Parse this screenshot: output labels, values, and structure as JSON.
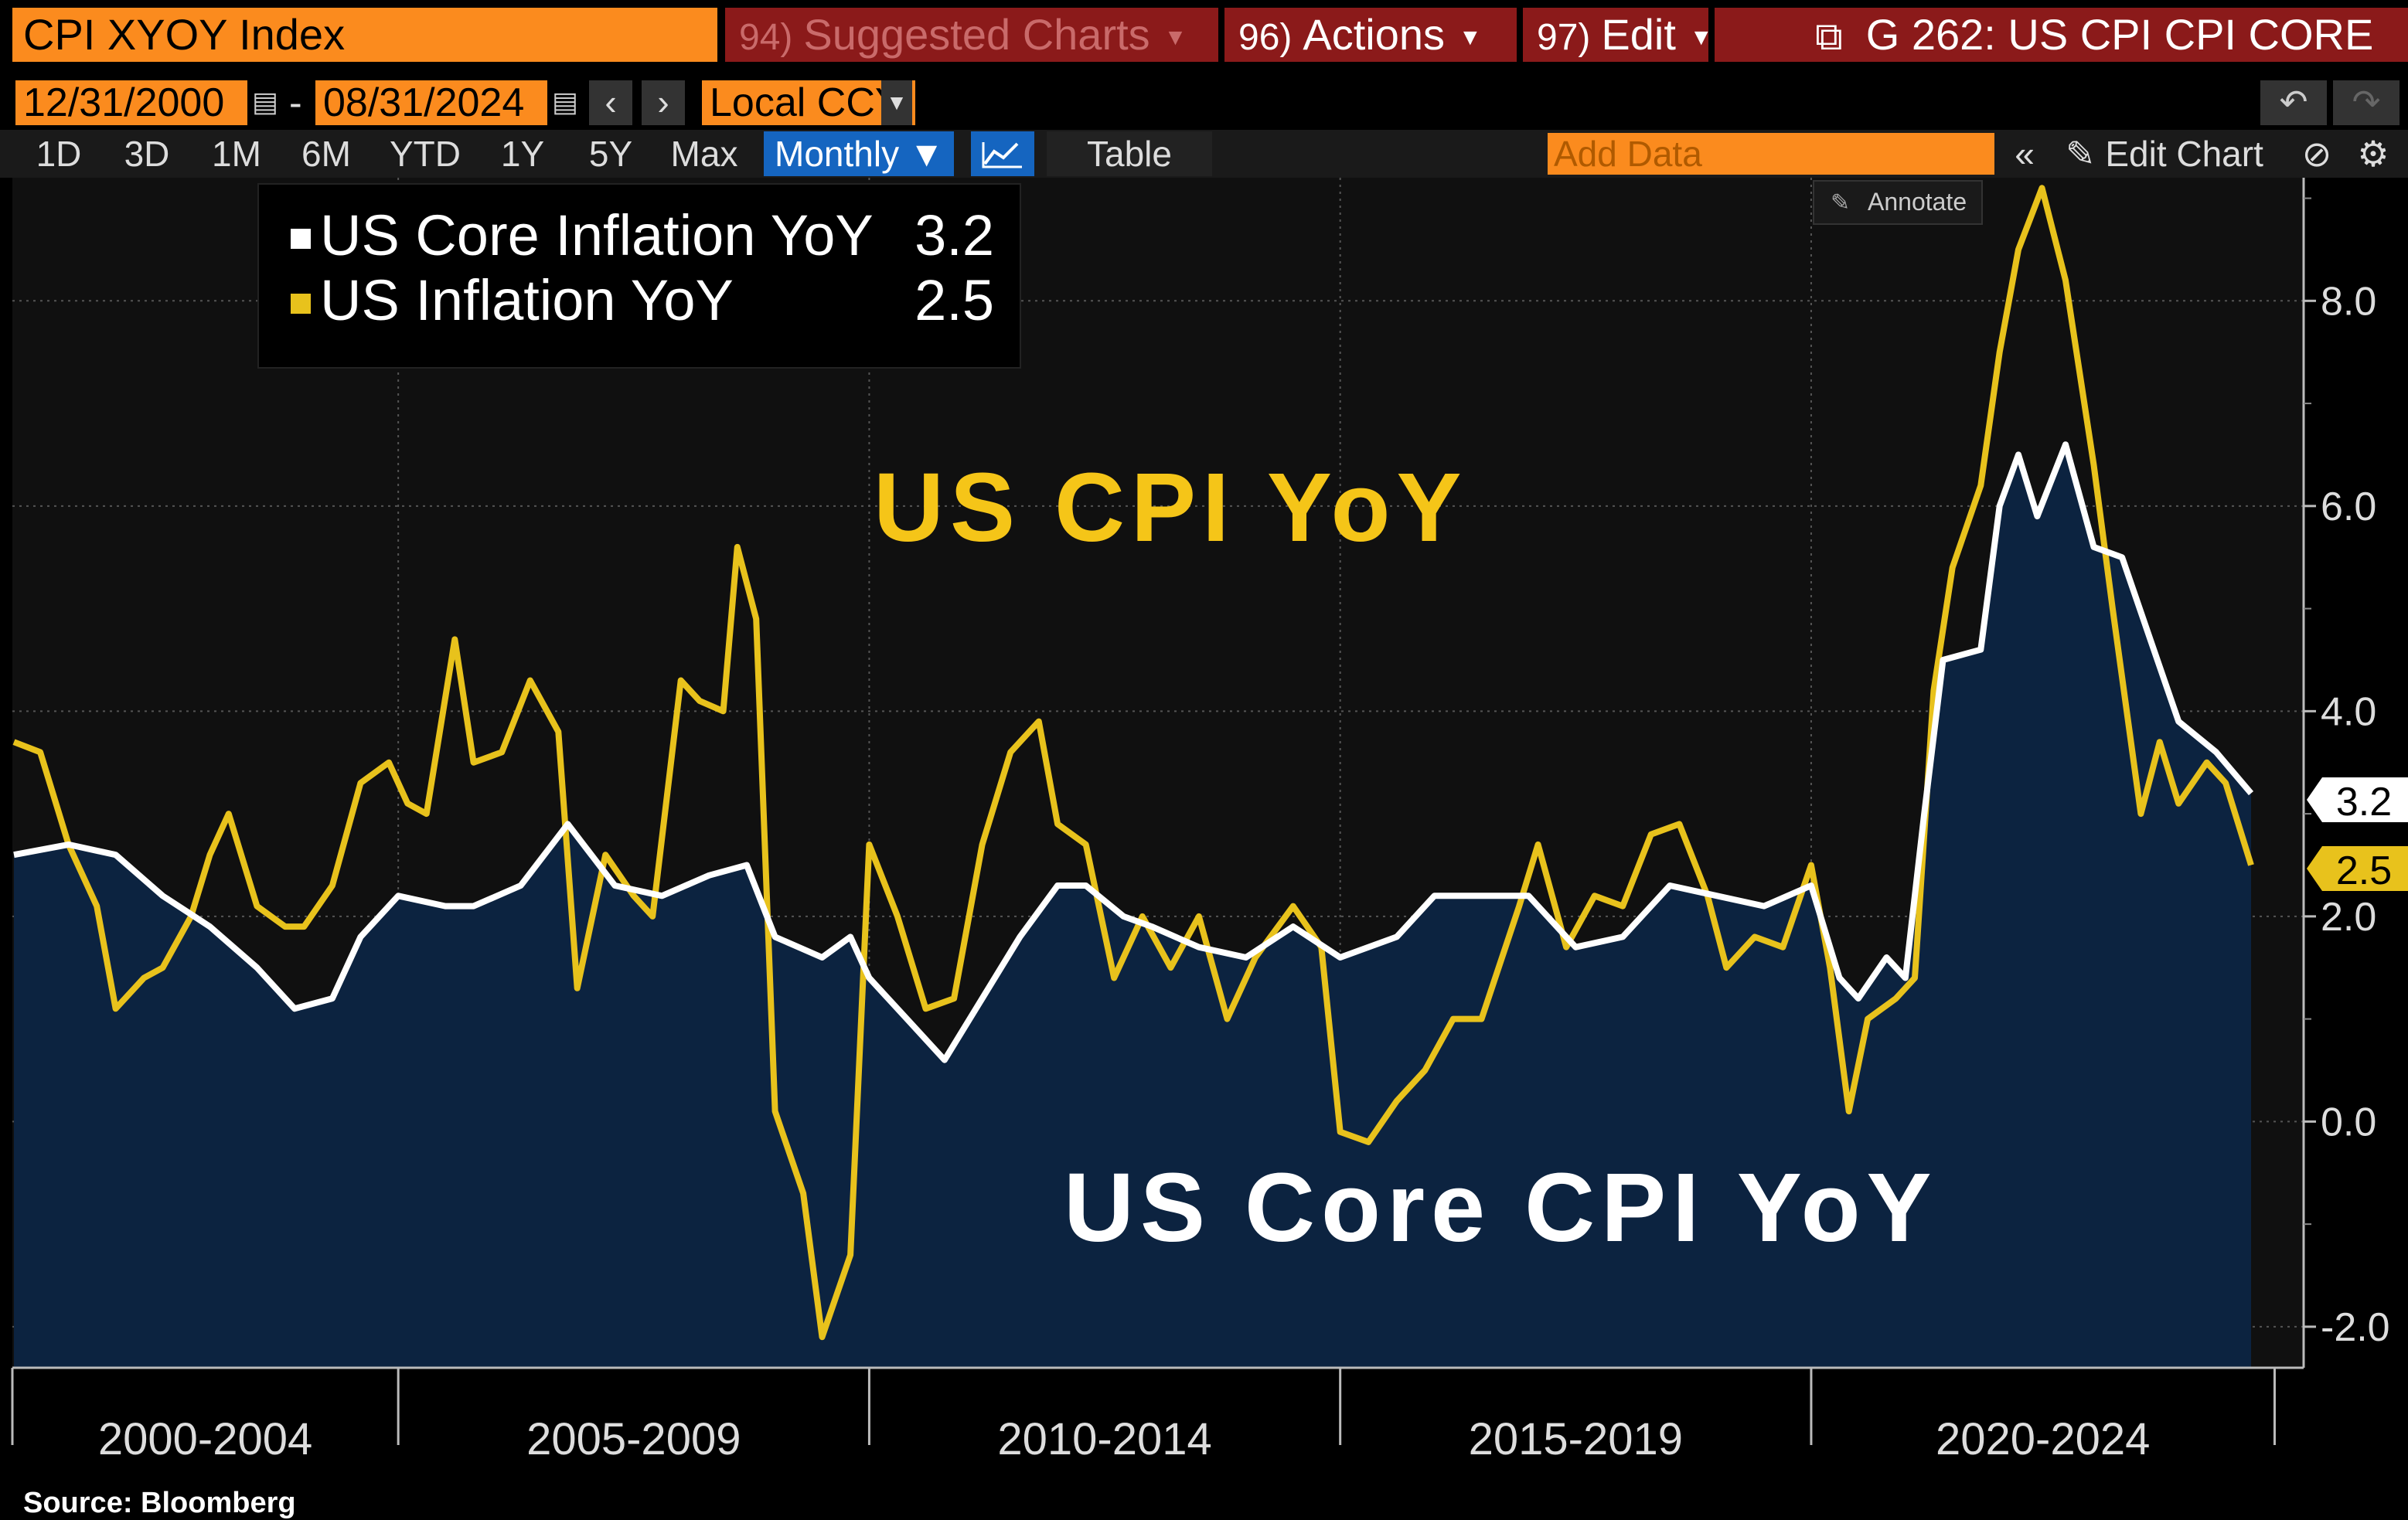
{
  "toolbar": {
    "ticker": "CPI XYOY Index",
    "suggested_num": "94)",
    "suggested_label": "Suggested Charts",
    "actions_num": "96)",
    "actions_label": "Actions",
    "edit_num": "97)",
    "edit_label": "Edit",
    "chart_title": "G 262: US CPI CPI CORE",
    "start_date": "12/31/2000",
    "date_sep": "-",
    "end_date": "08/31/2024",
    "currency": "Local CCY",
    "ranges": [
      "1D",
      "3D",
      "1M",
      "6M",
      "YTD",
      "1Y",
      "5Y",
      "Max"
    ],
    "frequency": "Monthly",
    "table_label": "Table",
    "add_data_placeholder": "Add Data",
    "edit_chart_label": "Edit Chart",
    "annotate_label": "Annotate"
  },
  "legend": [
    {
      "name": "US Core Inflation YoY",
      "value": "3.2",
      "color": "#ffffff"
    },
    {
      "name": "US Inflation YoY",
      "value": "2.5",
      "color": "#e8c21c"
    }
  ],
  "overlays": {
    "cpi_title": "US CPI YoY",
    "core_title": "US Core CPI YoY"
  },
  "source": "Source: Bloomberg",
  "colors": {
    "core": "#ffffff",
    "headline": "#e8c21c",
    "area": "#0c2340",
    "accent": "#fb8b1e",
    "menu": "#8b1a1a"
  },
  "chart_data": {
    "type": "line",
    "title": "G 262: US CPI CPI CORE",
    "x_range": [
      "2000-12",
      "2024-08"
    ],
    "ylim": [
      -2.4,
      9.2
    ],
    "y_ticks": [
      "-2.0",
      "0.0",
      "2.0",
      "4.0",
      "6.0",
      "8.0"
    ],
    "x_period_labels": [
      "2000-2004",
      "2005-2009",
      "2010-2014",
      "2015-2019",
      "2020-2024"
    ],
    "last_values": {
      "core": "3.2",
      "headline": "2.5"
    },
    "series": [
      {
        "name": "US Core Inflation YoY",
        "style": "line-with-area",
        "points": [
          [
            2000.92,
            2.6
          ],
          [
            2001.5,
            2.7
          ],
          [
            2002.0,
            2.6
          ],
          [
            2002.5,
            2.2
          ],
          [
            2003.0,
            1.9
          ],
          [
            2003.5,
            1.5
          ],
          [
            2003.9,
            1.1
          ],
          [
            2004.3,
            1.2
          ],
          [
            2004.6,
            1.8
          ],
          [
            2005.0,
            2.2
          ],
          [
            2005.5,
            2.1
          ],
          [
            2005.8,
            2.1
          ],
          [
            2006.3,
            2.3
          ],
          [
            2006.8,
            2.9
          ],
          [
            2007.3,
            2.3
          ],
          [
            2007.8,
            2.2
          ],
          [
            2008.3,
            2.4
          ],
          [
            2008.7,
            2.5
          ],
          [
            2009.0,
            1.8
          ],
          [
            2009.5,
            1.6
          ],
          [
            2009.8,
            1.8
          ],
          [
            2010.0,
            1.4
          ],
          [
            2010.4,
            1.0
          ],
          [
            2010.8,
            0.6
          ],
          [
            2011.2,
            1.2
          ],
          [
            2011.6,
            1.8
          ],
          [
            2012.0,
            2.3
          ],
          [
            2012.3,
            2.3
          ],
          [
            2012.7,
            2.0
          ],
          [
            2013.0,
            1.9
          ],
          [
            2013.5,
            1.7
          ],
          [
            2014.0,
            1.6
          ],
          [
            2014.5,
            1.9
          ],
          [
            2015.0,
            1.6
          ],
          [
            2015.6,
            1.8
          ],
          [
            2016.0,
            2.2
          ],
          [
            2016.5,
            2.2
          ],
          [
            2017.0,
            2.2
          ],
          [
            2017.5,
            1.7
          ],
          [
            2018.0,
            1.8
          ],
          [
            2018.5,
            2.3
          ],
          [
            2019.0,
            2.2
          ],
          [
            2019.5,
            2.1
          ],
          [
            2020.0,
            2.3
          ],
          [
            2020.3,
            1.4
          ],
          [
            2020.5,
            1.2
          ],
          [
            2020.8,
            1.6
          ],
          [
            2021.0,
            1.4
          ],
          [
            2021.2,
            3.0
          ],
          [
            2021.4,
            4.5
          ],
          [
            2021.8,
            4.6
          ],
          [
            2022.0,
            6.0
          ],
          [
            2022.2,
            6.5
          ],
          [
            2022.4,
            5.9
          ],
          [
            2022.7,
            6.6
          ],
          [
            2023.0,
            5.6
          ],
          [
            2023.3,
            5.5
          ],
          [
            2023.6,
            4.7
          ],
          [
            2023.9,
            3.9
          ],
          [
            2024.3,
            3.6
          ],
          [
            2024.67,
            3.2
          ]
        ]
      },
      {
        "name": "US Inflation YoY",
        "style": "line",
        "points": [
          [
            2000.92,
            3.7
          ],
          [
            2001.2,
            3.6
          ],
          [
            2001.5,
            2.7
          ],
          [
            2001.8,
            2.1
          ],
          [
            2002.0,
            1.1
          ],
          [
            2002.3,
            1.4
          ],
          [
            2002.5,
            1.5
          ],
          [
            2002.8,
            2.0
          ],
          [
            2003.0,
            2.6
          ],
          [
            2003.2,
            3.0
          ],
          [
            2003.5,
            2.1
          ],
          [
            2003.8,
            1.9
          ],
          [
            2004.0,
            1.9
          ],
          [
            2004.3,
            2.3
          ],
          [
            2004.6,
            3.3
          ],
          [
            2004.9,
            3.5
          ],
          [
            2005.1,
            3.1
          ],
          [
            2005.3,
            3.0
          ],
          [
            2005.6,
            4.7
          ],
          [
            2005.8,
            3.5
          ],
          [
            2006.1,
            3.6
          ],
          [
            2006.4,
            4.3
          ],
          [
            2006.7,
            3.8
          ],
          [
            2006.9,
            1.3
          ],
          [
            2007.2,
            2.6
          ],
          [
            2007.5,
            2.2
          ],
          [
            2007.7,
            2.0
          ],
          [
            2008.0,
            4.3
          ],
          [
            2008.2,
            4.1
          ],
          [
            2008.45,
            4.0
          ],
          [
            2008.6,
            5.6
          ],
          [
            2008.8,
            4.9
          ],
          [
            2009.0,
            0.1
          ],
          [
            2009.3,
            -0.7
          ],
          [
            2009.5,
            -2.1
          ],
          [
            2009.8,
            -1.3
          ],
          [
            2010.0,
            2.7
          ],
          [
            2010.3,
            2.0
          ],
          [
            2010.6,
            1.1
          ],
          [
            2010.9,
            1.2
          ],
          [
            2011.2,
            2.7
          ],
          [
            2011.5,
            3.6
          ],
          [
            2011.8,
            3.9
          ],
          [
            2012.0,
            2.9
          ],
          [
            2012.3,
            2.7
          ],
          [
            2012.6,
            1.4
          ],
          [
            2012.9,
            2.0
          ],
          [
            2013.2,
            1.5
          ],
          [
            2013.5,
            2.0
          ],
          [
            2013.8,
            1.0
          ],
          [
            2014.1,
            1.6
          ],
          [
            2014.5,
            2.1
          ],
          [
            2014.8,
            1.7
          ],
          [
            2015.0,
            -0.1
          ],
          [
            2015.3,
            -0.2
          ],
          [
            2015.6,
            0.2
          ],
          [
            2015.9,
            0.5
          ],
          [
            2016.2,
            1.0
          ],
          [
            2016.5,
            1.0
          ],
          [
            2016.9,
            2.1
          ],
          [
            2017.1,
            2.7
          ],
          [
            2017.4,
            1.7
          ],
          [
            2017.7,
            2.2
          ],
          [
            2018.0,
            2.1
          ],
          [
            2018.3,
            2.8
          ],
          [
            2018.6,
            2.9
          ],
          [
            2018.9,
            2.2
          ],
          [
            2019.1,
            1.5
          ],
          [
            2019.4,
            1.8
          ],
          [
            2019.7,
            1.7
          ],
          [
            2020.0,
            2.5
          ],
          [
            2020.2,
            1.5
          ],
          [
            2020.4,
            0.1
          ],
          [
            2020.6,
            1.0
          ],
          [
            2020.9,
            1.2
          ],
          [
            2021.1,
            1.4
          ],
          [
            2021.3,
            4.2
          ],
          [
            2021.5,
            5.4
          ],
          [
            2021.8,
            6.2
          ],
          [
            2022.0,
            7.5
          ],
          [
            2022.2,
            8.5
          ],
          [
            2022.45,
            9.1
          ],
          [
            2022.7,
            8.2
          ],
          [
            2023.0,
            6.4
          ],
          [
            2023.2,
            5.0
          ],
          [
            2023.5,
            3.0
          ],
          [
            2023.7,
            3.7
          ],
          [
            2023.9,
            3.1
          ],
          [
            2024.2,
            3.5
          ],
          [
            2024.4,
            3.3
          ],
          [
            2024.67,
            2.5
          ]
        ]
      }
    ]
  }
}
